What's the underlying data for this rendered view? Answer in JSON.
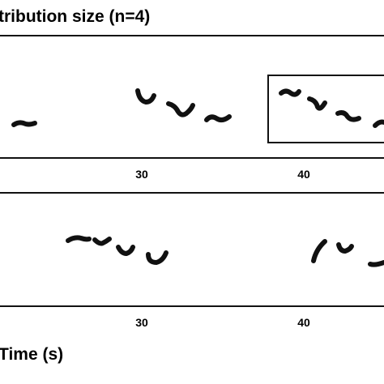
{
  "title": "tribution size (n=4)",
  "panels": [
    {
      "ticks": [
        "30",
        "40"
      ]
    },
    {
      "ticks": [
        "30",
        "40"
      ]
    }
  ],
  "x_label": "Time (s)"
}
